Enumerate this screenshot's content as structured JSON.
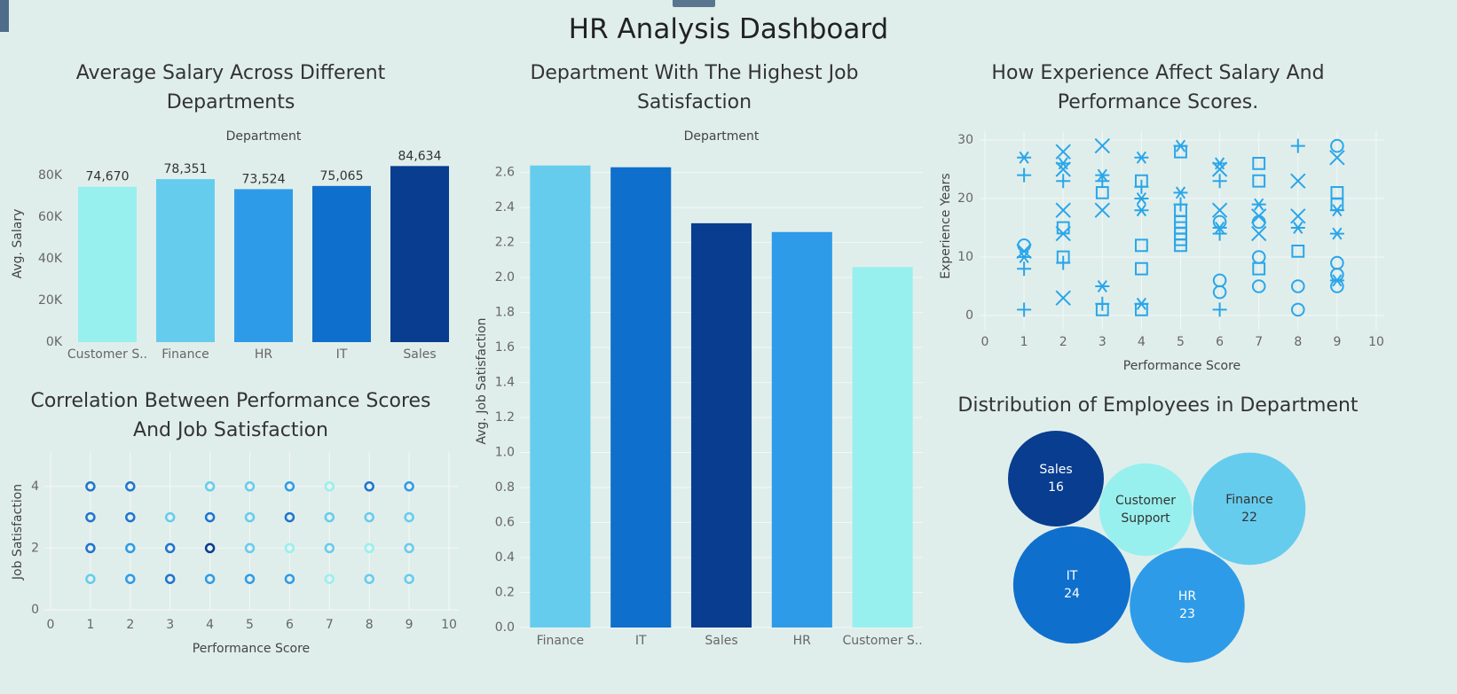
{
  "title": "HR Analysis Dashboard",
  "chart_data": [
    {
      "type": "bar",
      "title": "Average Salary Across Different Departments",
      "x_label": "Department",
      "y_label": "Avg. Salary",
      "categories": [
        "Customer S..",
        "Finance",
        "HR",
        "IT",
        "Sales"
      ],
      "values": [
        74670,
        78351,
        73524,
        75065,
        84634
      ],
      "value_labels": [
        "74,670",
        "78,351",
        "73,524",
        "75,065",
        "84,634"
      ],
      "colors": [
        "#98f0ee",
        "#66ccee",
        "#2e9be8",
        "#0f6fcc",
        "#083d8f"
      ],
      "ylim": [
        0,
        95000
      ],
      "yticks": [
        {
          "value": 0,
          "label": "0K"
        },
        {
          "value": 20000,
          "label": "20K"
        },
        {
          "value": 40000,
          "label": "40K"
        },
        {
          "value": 60000,
          "label": "60K"
        },
        {
          "value": 80000,
          "label": "80K"
        }
      ],
      "grid": false
    },
    {
      "type": "bar",
      "title": "Department With The Highest Job Satisfaction",
      "x_label": "Department",
      "y_label": "Avg. Job Satisfaction",
      "categories": [
        "Finance",
        "IT",
        "Sales",
        "HR",
        "Customer S.."
      ],
      "values": [
        2.64,
        2.63,
        2.31,
        2.26,
        2.06
      ],
      "colors": [
        "#66ccee",
        "#0f6fcc",
        "#083d8f",
        "#2e9be8",
        "#98f0ee"
      ],
      "ylim": [
        0,
        2.75
      ],
      "yticks": [
        {
          "value": 0,
          "label": "0.0"
        },
        0.2,
        0.4,
        0.6,
        0.8,
        {
          "value": 1,
          "label": "1.0"
        },
        1.2,
        1.4,
        1.6,
        1.8,
        {
          "value": 2,
          "label": "2.0"
        },
        2.2,
        2.4,
        2.6
      ],
      "grid": true
    },
    {
      "type": "scatter",
      "title": "Correlation Between Performance Scores And Job Satisfaction",
      "x_label": "Performance Score",
      "y_label": "Job Satisfaction",
      "x": [
        1,
        2,
        4,
        5,
        6,
        7,
        8,
        9,
        1,
        2,
        3,
        4,
        5,
        6,
        7,
        8,
        9,
        1,
        2,
        3,
        4,
        5,
        6,
        7,
        8,
        9,
        1,
        2,
        3,
        4,
        5,
        6,
        7,
        8,
        9
      ],
      "y": [
        4,
        4,
        4,
        4,
        4,
        4,
        4,
        4,
        3,
        3,
        3,
        3,
        3,
        3,
        3,
        3,
        3,
        2,
        2,
        2,
        2,
        2,
        2,
        2,
        2,
        2,
        1,
        1,
        1,
        1,
        1,
        1,
        1,
        1,
        1
      ],
      "colors": [
        "#1f74cf",
        "#1f74cf",
        "#66ccee",
        "#66ccee",
        "#2e9be8",
        "#98f0ee",
        "#1f74cf",
        "#2e9be8",
        "#1f74cf",
        "#1f74cf",
        "#66ccee",
        "#1f74cf",
        "#66ccee",
        "#1f74cf",
        "#66ccee",
        "#66ccee",
        "#66ccee",
        "#1f74cf",
        "#2e9be8",
        "#1f74cf",
        "#083d8f",
        "#66ccee",
        "#98f0ee",
        "#66ccee",
        "#98f0ee",
        "#66ccee",
        "#66ccee",
        "#2e9be8",
        "#1f74cf",
        "#2e9be8",
        "#2e9be8",
        "#2e9be8",
        "#98f0ee",
        "#66ccee",
        "#66ccee"
      ],
      "xlim": [
        0,
        10
      ],
      "xticks": [
        0,
        1,
        2,
        3,
        4,
        5,
        6,
        7,
        8,
        9,
        10
      ],
      "ylim": [
        0,
        5
      ],
      "yticks": [
        0,
        2,
        4
      ],
      "grid": true
    },
    {
      "type": "shape-scatter",
      "title": "How Experience Affect Salary And Performance Scores.",
      "x_label": "Performance Score",
      "y_label": "Experience Years",
      "color": "#2aa6ea",
      "x": [
        1,
        1,
        1,
        1,
        1,
        1,
        1,
        2,
        2,
        2,
        2,
        2,
        2,
        2,
        2,
        2,
        2,
        3,
        3,
        3,
        3,
        3,
        3,
        3,
        3,
        4,
        4,
        4,
        4,
        4,
        4,
        4,
        4,
        4,
        5,
        5,
        5,
        5,
        5,
        5,
        5,
        5,
        5,
        5,
        6,
        6,
        6,
        6,
        6,
        6,
        6,
        6,
        6,
        6,
        7,
        7,
        7,
        7,
        7,
        7,
        7,
        7,
        7,
        8,
        8,
        8,
        8,
        8,
        8,
        8,
        9,
        9,
        9,
        9,
        9,
        9,
        9,
        9,
        9,
        9
      ],
      "y": [
        27,
        24,
        12,
        11,
        10,
        8,
        1,
        28,
        26,
        25,
        23,
        18,
        15,
        14,
        10,
        9,
        3,
        29,
        24,
        23,
        21,
        18,
        5,
        2,
        1,
        27,
        23,
        22,
        20,
        18,
        12,
        8,
        2,
        1,
        29,
        28,
        21,
        19,
        18,
        16,
        15,
        14,
        13,
        12,
        26,
        25,
        23,
        18,
        16,
        15,
        14,
        6,
        4,
        1,
        26,
        23,
        19,
        17,
        16,
        14,
        10,
        8,
        5,
        29,
        23,
        17,
        15,
        11,
        5,
        1,
        29,
        27,
        21,
        19,
        18,
        14,
        9,
        7,
        6,
        5
      ],
      "shapes": [
        "asterisk",
        "plus",
        "circle",
        "cross",
        "asterisk",
        "plus",
        "plus",
        "cross",
        "asterisk",
        "cross",
        "plus",
        "cross",
        "square",
        "cross",
        "square",
        "plus",
        "cross",
        "cross",
        "asterisk",
        "plus",
        "square",
        "cross",
        "asterisk",
        "plus",
        "square",
        "asterisk",
        "square",
        "plus",
        "asterisk",
        "asterisk",
        "square",
        "square",
        "asterisk",
        "square",
        "asterisk",
        "square",
        "asterisk",
        "plus",
        "square",
        "square",
        "square",
        "square",
        "square",
        "square",
        "asterisk",
        "cross",
        "plus",
        "cross",
        "circle",
        "asterisk",
        "plus",
        "circle",
        "circle",
        "plus",
        "square",
        "square",
        "asterisk",
        "cross",
        "circle",
        "cross",
        "circle",
        "square",
        "circle",
        "plus",
        "cross",
        "cross",
        "asterisk",
        "square",
        "circle",
        "circle",
        "circle",
        "cross",
        "square",
        "square",
        "asterisk",
        "asterisk",
        "circle",
        "circle",
        "asterisk",
        "circle"
      ],
      "xlim": [
        0,
        10
      ],
      "xticks": [
        0,
        1,
        2,
        3,
        4,
        5,
        6,
        7,
        8,
        9,
        10
      ],
      "ylim": [
        0,
        30
      ],
      "yticks": [
        0,
        10,
        20,
        30
      ],
      "grid": true
    },
    {
      "type": "bubble",
      "title": "Distribution of Employees in Department",
      "categories": [
        "Sales",
        "Customer Support",
        "Finance",
        "IT",
        "HR"
      ],
      "values": [
        16,
        15,
        22,
        24,
        23
      ],
      "value_labels": [
        "16",
        null,
        "22",
        "24",
        "23"
      ],
      "colors": [
        "#083d8f",
        "#98f0ee",
        "#66ccee",
        "#0f6fcc",
        "#2e9be8"
      ]
    }
  ]
}
